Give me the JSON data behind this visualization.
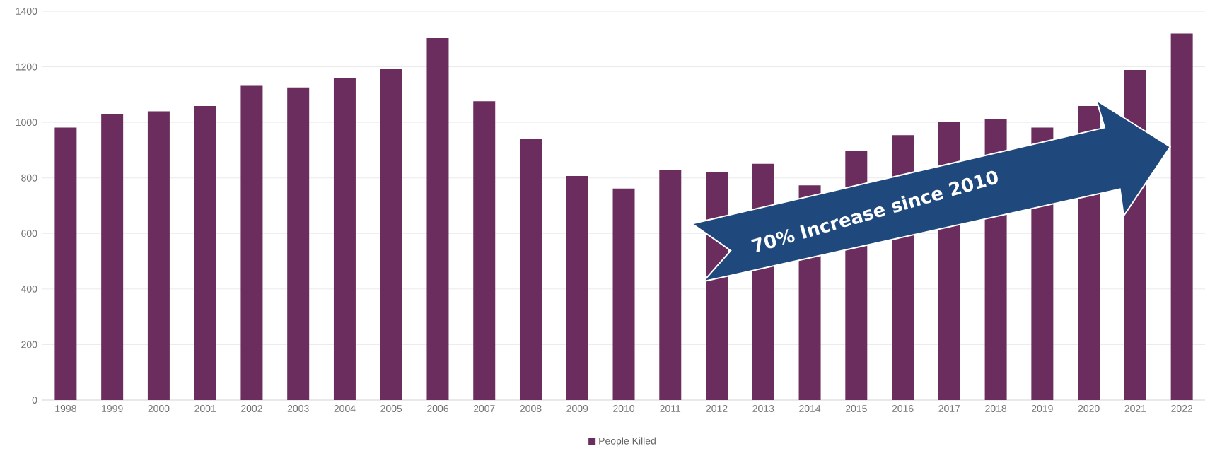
{
  "chart_data": {
    "type": "bar",
    "categories": [
      "1998",
      "1999",
      "2000",
      "2001",
      "2002",
      "2003",
      "2004",
      "2005",
      "2006",
      "2007",
      "2008",
      "2009",
      "2010",
      "2011",
      "2012",
      "2013",
      "2014",
      "2015",
      "2016",
      "2017",
      "2018",
      "2019",
      "2020",
      "2021",
      "2022"
    ],
    "series": [
      {
        "name": "People Killed",
        "color": "#6b2d5e",
        "values": [
          981,
          1029,
          1040,
          1059,
          1134,
          1126,
          1159,
          1192,
          1303,
          1076,
          940,
          807,
          762,
          829,
          821,
          851,
          773,
          898,
          954,
          1001,
          1012,
          981,
          1059,
          1189,
          1320
        ]
      }
    ],
    "ylim": [
      0,
      1400
    ],
    "yticks": [
      0,
      200,
      400,
      600,
      800,
      1000,
      1200,
      1400
    ],
    "grid": "y",
    "legend": "bottom",
    "annotations": [
      "70% Increase since 2010"
    ]
  }
}
